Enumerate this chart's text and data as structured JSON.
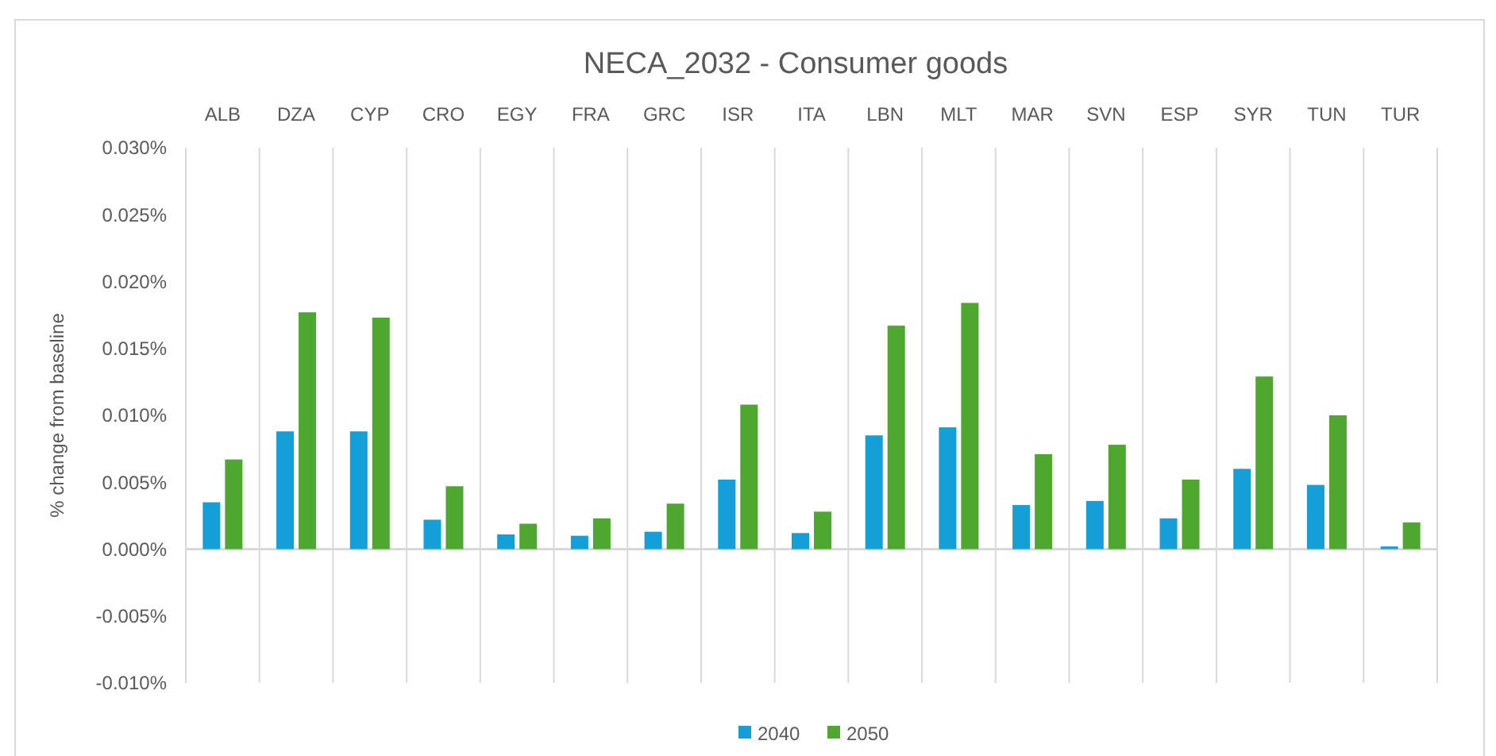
{
  "chart_data": {
    "type": "bar",
    "title": "NECA_2032 - Consumer goods",
    "ylabel": "% change from baseline",
    "categories": [
      "ALB",
      "DZA",
      "CYP",
      "CRO",
      "EGY",
      "FRA",
      "GRC",
      "ISR",
      "ITA",
      "LBN",
      "MLT",
      "MAR",
      "SVN",
      "ESP",
      "SYR",
      "TUN",
      "TUR"
    ],
    "series": [
      {
        "name": "2040",
        "color": "#149fd8",
        "values": [
          0.0035,
          0.0088,
          0.0088,
          0.0022,
          0.0011,
          0.001,
          0.0013,
          0.0052,
          0.0012,
          0.0085,
          0.0091,
          0.0033,
          0.0036,
          0.0023,
          0.006,
          0.0048,
          0.0002
        ]
      },
      {
        "name": "2050",
        "color": "#4ea72e",
        "values": [
          0.0067,
          0.0177,
          0.0173,
          0.0047,
          0.0019,
          0.0023,
          0.0034,
          0.0108,
          0.0028,
          0.0167,
          0.0184,
          0.0071,
          0.0078,
          0.0052,
          0.0129,
          0.01,
          0.002
        ]
      }
    ],
    "ylim": [
      -0.01,
      0.03
    ],
    "yticks": [
      {
        "value": -0.01,
        "label": "-0.010%"
      },
      {
        "value": -0.005,
        "label": "-0.005%"
      },
      {
        "value": 0,
        "label": "0.000%"
      },
      {
        "value": 0.005,
        "label": "0.005%"
      },
      {
        "value": 0.01,
        "label": "0.010%"
      },
      {
        "value": 0.015,
        "label": "0.015%"
      },
      {
        "value": 0.02,
        "label": "0.020%"
      },
      {
        "value": 0.025,
        "label": "0.025%"
      },
      {
        "value": 0.03,
        "label": "0.030%"
      }
    ],
    "grid": "x",
    "legend": "bottom"
  }
}
